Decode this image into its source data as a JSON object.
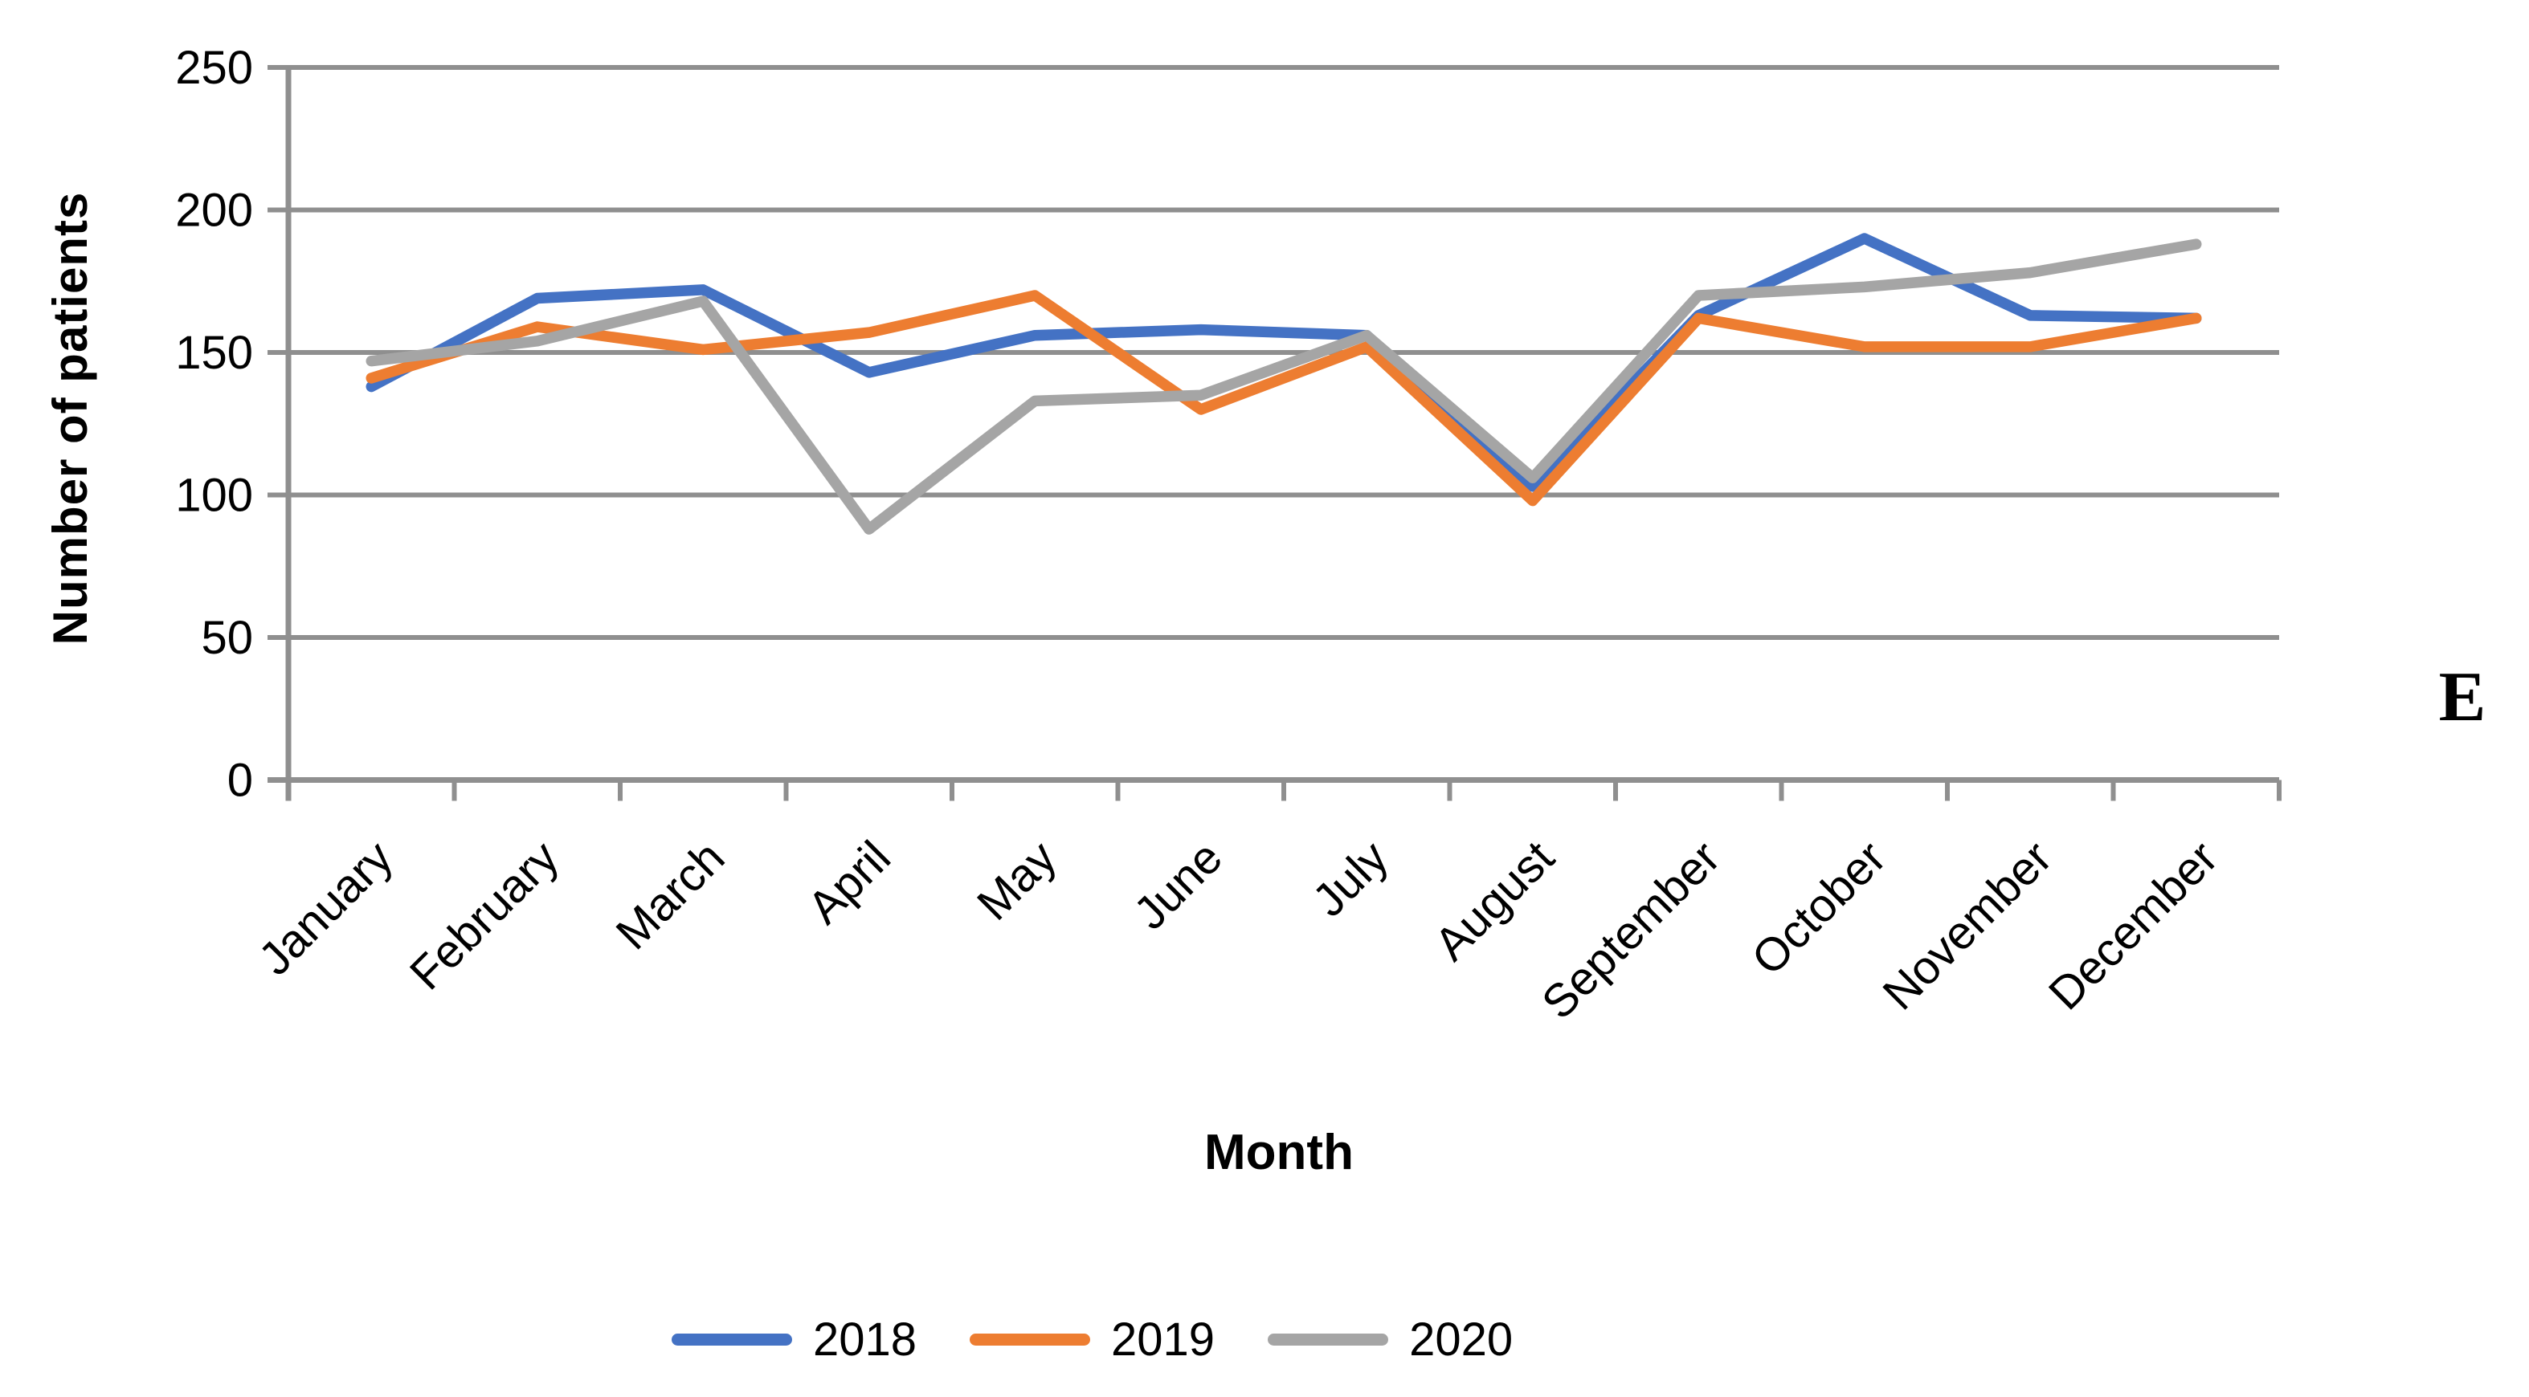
{
  "chart_data": {
    "type": "line",
    "title": "",
    "categories": [
      "January",
      "February",
      "March",
      "April",
      "May",
      "June",
      "July",
      "August",
      "September",
      "October",
      "November",
      "December"
    ],
    "series": [
      {
        "name": "2018",
        "color": "#4472C4",
        "values": [
          138,
          169,
          172,
          143,
          156,
          158,
          156,
          103,
          163,
          190,
          163,
          162
        ]
      },
      {
        "name": "2019",
        "color": "#ED7D31",
        "values": [
          141,
          159,
          151,
          157,
          170,
          130,
          152,
          98,
          162,
          152,
          152,
          162
        ]
      },
      {
        "name": "2020",
        "color": "#A5A5A5",
        "values": [
          147,
          154,
          168,
          88,
          133,
          135,
          156,
          106,
          170,
          173,
          178,
          188
        ]
      }
    ],
    "xlabel": "Month",
    "ylabel": "Number of patients",
    "ylim": [
      0,
      250
    ],
    "ytick_step": 50,
    "yticks": [
      "0",
      "50",
      "100",
      "150",
      "200",
      "250"
    ],
    "grid": true,
    "grid_color": "#8f8f8f",
    "axis_color": "#8f8f8f",
    "legend_position": "bottom",
    "annotation": "E"
  }
}
